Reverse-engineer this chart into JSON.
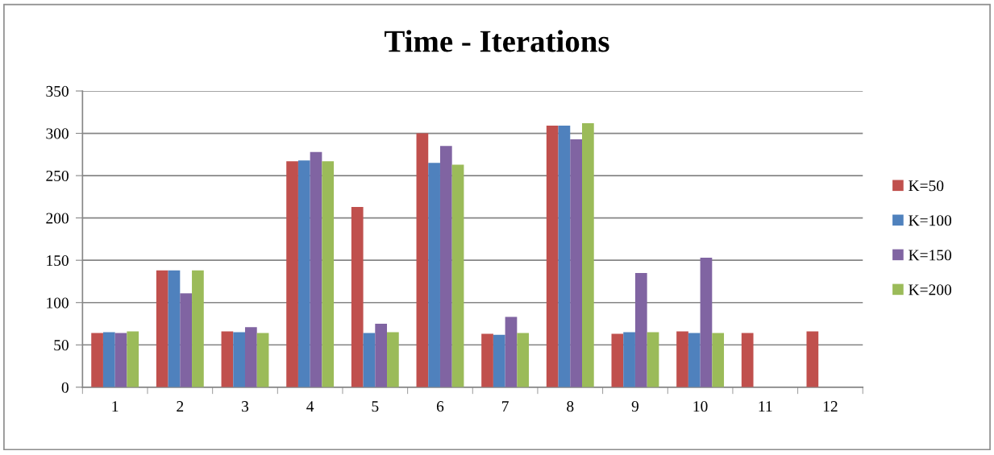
{
  "chart_data": {
    "type": "bar",
    "title": "Time - Iterations",
    "categories": [
      "1",
      "2",
      "3",
      "4",
      "5",
      "6",
      "7",
      "8",
      "9",
      "10",
      "11",
      "12"
    ],
    "series": [
      {
        "name": "K=50",
        "color": "#c0504d",
        "values": [
          64,
          138,
          66,
          267,
          213,
          300,
          63,
          309,
          63,
          66,
          64,
          66
        ]
      },
      {
        "name": "K=100",
        "color": "#4f81bd",
        "values": [
          65,
          138,
          65,
          268,
          64,
          265,
          62,
          309,
          65,
          64,
          null,
          null
        ]
      },
      {
        "name": "K=150",
        "color": "#8064a2",
        "values": [
          64,
          111,
          71,
          278,
          75,
          285,
          83,
          293,
          135,
          153,
          null,
          null
        ]
      },
      {
        "name": "K=200",
        "color": "#9bbb59",
        "values": [
          66,
          138,
          64,
          267,
          65,
          263,
          64,
          312,
          65,
          64,
          null,
          null
        ]
      }
    ],
    "ylim": [
      0,
      350
    ],
    "yticks": [
      0,
      50,
      100,
      150,
      200,
      250,
      300,
      350
    ],
    "grid": "y",
    "legend": "right"
  }
}
